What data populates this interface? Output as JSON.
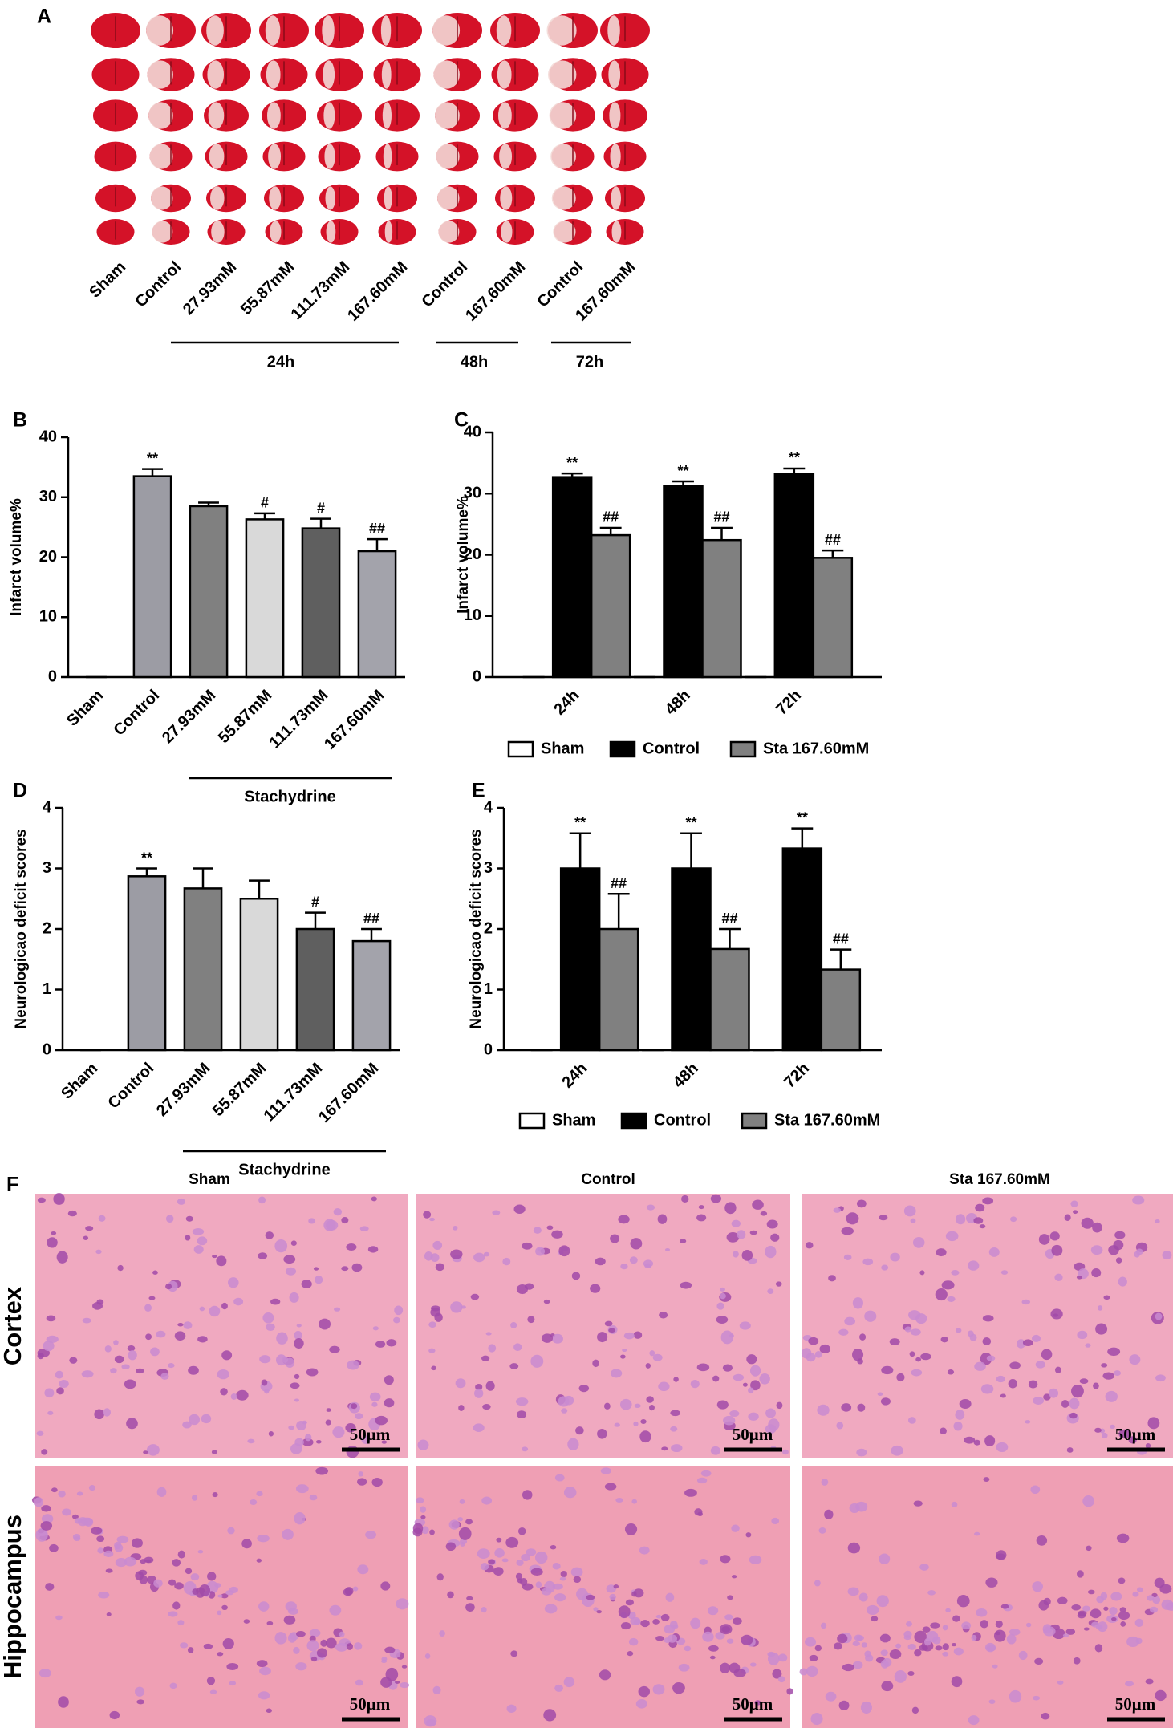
{
  "panel_a": {
    "label": "A",
    "columns": [
      "Sham",
      "Control",
      "27.93mM",
      "55.87mM",
      "111.73mM",
      "167.60mM",
      "Control",
      "167.60mM",
      "Control",
      "167.60mM"
    ],
    "groups": [
      "24h",
      "48h",
      "72h"
    ]
  },
  "chart_data": [
    {
      "type": "bar",
      "panel": "B",
      "ylabel": "Infarct volume%",
      "categories": [
        "Sham",
        "Control",
        "27.93mM",
        "55.87mM",
        "111.73mM",
        "167.60mM"
      ],
      "values": [
        0,
        33.5,
        28.5,
        26.3,
        24.8,
        21
      ],
      "errors": [
        0,
        1.2,
        0.6,
        1.0,
        1.6,
        2.0
      ],
      "annotations": [
        null,
        "**",
        null,
        "#",
        "#",
        "##"
      ],
      "colors": [
        "#ffffff",
        "#9c9ca4",
        "#808080",
        "#d9d9d9",
        "#5f5f5f",
        "#a3a3ab"
      ],
      "ylim": [
        0,
        40
      ],
      "yticks": [
        0,
        10,
        20,
        30,
        40
      ],
      "group_label": "Stachydrine"
    },
    {
      "type": "grouped_bar",
      "panel": "C",
      "ylabel": "Infarct volume%",
      "categories": [
        "24h",
        "48h",
        "72h"
      ],
      "series": [
        {
          "name": "Sham",
          "color": "#ffffff",
          "values": [
            0,
            0,
            0
          ],
          "errors": [
            0,
            0,
            0
          ],
          "annotation": null
        },
        {
          "name": "Control",
          "color": "#000000",
          "values": [
            32.7,
            31.3,
            33.2
          ],
          "errors": [
            0.6,
            0.7,
            0.9
          ],
          "annotation": "**"
        },
        {
          "name": "Sta 167.60mM",
          "color": "#808080",
          "values": [
            23.2,
            22.4,
            19.5
          ],
          "errors": [
            1.2,
            2.0,
            1.2
          ],
          "annotation": "##"
        }
      ],
      "ylim": [
        0,
        40
      ],
      "yticks": [
        0,
        10,
        20,
        30,
        40
      ],
      "legend": "bottom"
    },
    {
      "type": "bar",
      "panel": "D",
      "ylabel": "Neurologicao deficit scores",
      "categories": [
        "Sham",
        "Control",
        "27.93mM",
        "55.87mM",
        "111.73mM",
        "167.60mM"
      ],
      "values": [
        0,
        2.87,
        2.67,
        2.5,
        2.0,
        1.8
      ],
      "errors": [
        0,
        0.13,
        0.33,
        0.3,
        0.27,
        0.2
      ],
      "annotations": [
        null,
        "**",
        null,
        null,
        "#",
        "##"
      ],
      "colors": [
        "#ffffff",
        "#9c9ca4",
        "#808080",
        "#d9d9d9",
        "#5f5f5f",
        "#a3a3ab"
      ],
      "ylim": [
        0,
        4
      ],
      "yticks": [
        0,
        1,
        2,
        3,
        4
      ],
      "group_label": "Stachydrine"
    },
    {
      "type": "grouped_bar",
      "panel": "E",
      "ylabel": "Neurologicao deficit scores",
      "categories": [
        "24h",
        "48h",
        "72h"
      ],
      "series": [
        {
          "name": "Sham",
          "color": "#ffffff",
          "values": [
            0,
            0,
            0
          ],
          "errors": [
            0,
            0,
            0
          ],
          "annotation": null
        },
        {
          "name": "Control",
          "color": "#000000",
          "values": [
            3.0,
            3.0,
            3.33
          ],
          "errors": [
            0.58,
            0.58,
            0.33
          ],
          "annotation": "**"
        },
        {
          "name": "Sta 167.60mM",
          "color": "#808080",
          "values": [
            2.0,
            1.67,
            1.33
          ],
          "errors": [
            0.58,
            0.33,
            0.33
          ],
          "annotation": "##"
        }
      ],
      "ylim": [
        0,
        4
      ],
      "yticks": [
        0,
        1,
        2,
        3,
        4
      ],
      "legend": "bottom"
    }
  ],
  "panel_f": {
    "label": "F",
    "columns": [
      "Sham",
      "Control",
      "Sta 167.60mM"
    ],
    "rows": [
      "Cortex",
      "Hippocampus"
    ],
    "scale_bar": "50μm"
  }
}
